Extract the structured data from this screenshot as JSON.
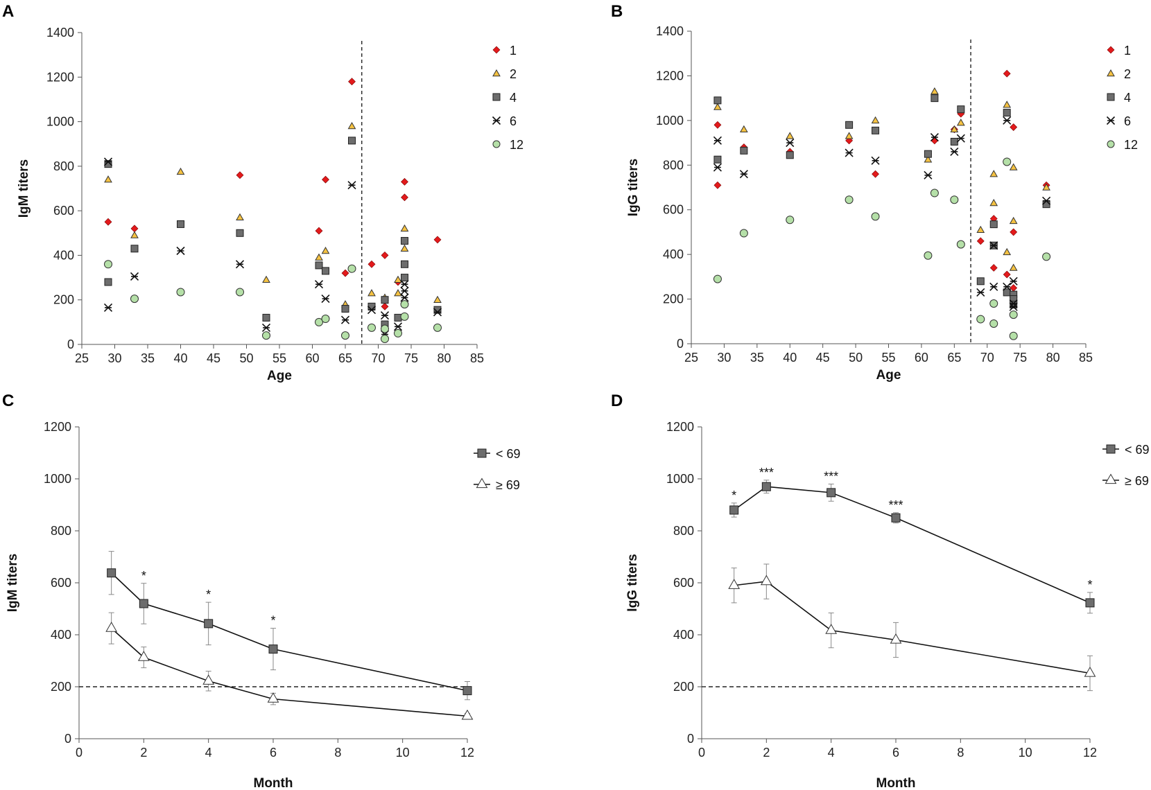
{
  "chart_data": [
    {
      "panel": "A",
      "type": "scatter",
      "xlabel": "Age",
      "ylabel": "IgM titers",
      "xlim": [
        25,
        85
      ],
      "ylim": [
        0,
        1400
      ],
      "xticks": [
        "25",
        "30",
        "35",
        "40",
        "45",
        "50",
        "55",
        "60",
        "65",
        "70",
        "75",
        "80",
        "85"
      ],
      "yticks": [
        "0",
        "200",
        "400",
        "600",
        "800",
        "1000",
        "1200",
        "1400"
      ],
      "vline": 67.5,
      "series": [
        {
          "name": "1",
          "marker": "diamond",
          "color": "#e31a1c",
          "points": [
            [
              29,
              550
            ],
            [
              33,
              520
            ],
            [
              49,
              760
            ],
            [
              61,
              510
            ],
            [
              62,
              740
            ],
            [
              65,
              320
            ],
            [
              66,
              1180
            ],
            [
              69,
              360
            ],
            [
              71,
              400
            ],
            [
              71,
              170
            ],
            [
              73,
              280
            ],
            [
              74,
              730
            ],
            [
              74,
              660
            ],
            [
              79,
              470
            ]
          ]
        },
        {
          "name": "2",
          "marker": "triangle",
          "color": "#f5c242",
          "points": [
            [
              29,
              740
            ],
            [
              33,
              490
            ],
            [
              40,
              775
            ],
            [
              49,
              570
            ],
            [
              53,
              290
            ],
            [
              61,
              390
            ],
            [
              62,
              420
            ],
            [
              65,
              180
            ],
            [
              66,
              980
            ],
            [
              69,
              230
            ],
            [
              71,
              210
            ],
            [
              73,
              290
            ],
            [
              73,
              230
            ],
            [
              74,
              520
            ],
            [
              74,
              430
            ],
            [
              79,
              200
            ]
          ]
        },
        {
          "name": "4",
          "marker": "square",
          "color": "#6d6d6d",
          "points": [
            [
              29,
              810
            ],
            [
              29,
              280
            ],
            [
              33,
              430
            ],
            [
              40,
              540
            ],
            [
              49,
              500
            ],
            [
              53,
              120
            ],
            [
              61,
              355
            ],
            [
              62,
              330
            ],
            [
              65,
              160
            ],
            [
              66,
              915
            ],
            [
              69,
              170
            ],
            [
              71,
              200
            ],
            [
              71,
              90
            ],
            [
              73,
              120
            ],
            [
              74,
              465
            ],
            [
              74,
              360
            ],
            [
              74,
              300
            ],
            [
              79,
              155
            ]
          ]
        },
        {
          "name": "6",
          "marker": "asterisk",
          "color": "#111111",
          "points": [
            [
              29,
              820
            ],
            [
              29,
              165
            ],
            [
              33,
              305
            ],
            [
              40,
              420
            ],
            [
              49,
              360
            ],
            [
              53,
              75
            ],
            [
              61,
              270
            ],
            [
              62,
              205
            ],
            [
              65,
              110
            ],
            [
              66,
              715
            ],
            [
              69,
              155
            ],
            [
              71,
              130
            ],
            [
              71,
              45
            ],
            [
              73,
              80
            ],
            [
              74,
              270
            ],
            [
              74,
              240
            ],
            [
              74,
              210
            ],
            [
              79,
              145
            ]
          ]
        },
        {
          "name": "12",
          "marker": "circle",
          "color": "#b5e0a8",
          "points": [
            [
              29,
              360
            ],
            [
              33,
              205
            ],
            [
              40,
              235
            ],
            [
              49,
              235
            ],
            [
              53,
              40
            ],
            [
              61,
              100
            ],
            [
              62,
              115
            ],
            [
              65,
              40
            ],
            [
              66,
              340
            ],
            [
              69,
              75
            ],
            [
              71,
              70
            ],
            [
              71,
              25
            ],
            [
              73,
              50
            ],
            [
              74,
              180
            ],
            [
              74,
              125
            ],
            [
              79,
              75
            ]
          ]
        }
      ]
    },
    {
      "panel": "B",
      "type": "scatter",
      "xlabel": "Age",
      "ylabel": "IgG titers",
      "xlim": [
        25,
        85
      ],
      "ylim": [
        0,
        1400
      ],
      "xticks": [
        "25",
        "30",
        "35",
        "40",
        "45",
        "50",
        "55",
        "60",
        "65",
        "70",
        "75",
        "80",
        "85"
      ],
      "yticks": [
        "0",
        "200",
        "400",
        "600",
        "800",
        "1000",
        "1200",
        "1400"
      ],
      "vline": 67.5,
      "series": [
        {
          "name": "1",
          "marker": "diamond",
          "color": "#e31a1c",
          "points": [
            [
              29,
              980
            ],
            [
              29,
              710
            ],
            [
              33,
              880
            ],
            [
              40,
              860
            ],
            [
              49,
              910
            ],
            [
              53,
              760
            ],
            [
              61,
              850
            ],
            [
              62,
              910
            ],
            [
              65,
              960
            ],
            [
              66,
              1030
            ],
            [
              69,
              460
            ],
            [
              71,
              560
            ],
            [
              71,
              340
            ],
            [
              73,
              1210
            ],
            [
              73,
              310
            ],
            [
              74,
              970
            ],
            [
              74,
              500
            ],
            [
              74,
              250
            ],
            [
              79,
              710
            ]
          ]
        },
        {
          "name": "2",
          "marker": "triangle",
          "color": "#f5c242",
          "points": [
            [
              29,
              1060
            ],
            [
              33,
              960
            ],
            [
              40,
              930
            ],
            [
              49,
              930
            ],
            [
              53,
              1000
            ],
            [
              61,
              825
            ],
            [
              62,
              1130
            ],
            [
              65,
              960
            ],
            [
              66,
              990
            ],
            [
              69,
              510
            ],
            [
              71,
              760
            ],
            [
              71,
              630
            ],
            [
              73,
              1070
            ],
            [
              73,
              410
            ],
            [
              74,
              790
            ],
            [
              74,
              550
            ],
            [
              74,
              340
            ],
            [
              79,
              700
            ]
          ]
        },
        {
          "name": "4",
          "marker": "square",
          "color": "#6d6d6d",
          "points": [
            [
              29,
              1090
            ],
            [
              29,
              825
            ],
            [
              33,
              865
            ],
            [
              40,
              845
            ],
            [
              49,
              980
            ],
            [
              53,
              955
            ],
            [
              61,
              850
            ],
            [
              62,
              1100
            ],
            [
              65,
              905
            ],
            [
              66,
              1050
            ],
            [
              69,
              280
            ],
            [
              71,
              535
            ],
            [
              71,
              440
            ],
            [
              73,
              1035
            ],
            [
              73,
              230
            ],
            [
              74,
              220
            ],
            [
              74,
              200
            ],
            [
              74,
              175
            ],
            [
              79,
              625
            ]
          ]
        },
        {
          "name": "6",
          "marker": "asterisk",
          "color": "#111111",
          "points": [
            [
              29,
              910
            ],
            [
              29,
              790
            ],
            [
              33,
              760
            ],
            [
              40,
              900
            ],
            [
              49,
              855
            ],
            [
              53,
              820
            ],
            [
              61,
              755
            ],
            [
              62,
              925
            ],
            [
              65,
              860
            ],
            [
              66,
              920
            ],
            [
              69,
              230
            ],
            [
              71,
              440
            ],
            [
              71,
              255
            ],
            [
              73,
              1000
            ],
            [
              73,
              255
            ],
            [
              74,
              280
            ],
            [
              74,
              180
            ],
            [
              74,
              165
            ],
            [
              79,
              640
            ]
          ]
        },
        {
          "name": "12",
          "marker": "circle",
          "color": "#b5e0a8",
          "points": [
            [
              29,
              290
            ],
            [
              33,
              495
            ],
            [
              40,
              555
            ],
            [
              49,
              645
            ],
            [
              53,
              570
            ],
            [
              61,
              395
            ],
            [
              62,
              675
            ],
            [
              65,
              645
            ],
            [
              66,
              445
            ],
            [
              69,
              110
            ],
            [
              71,
              180
            ],
            [
              71,
              90
            ],
            [
              73,
              815
            ],
            [
              74,
              130
            ],
            [
              74,
              35
            ],
            [
              79,
              390
            ]
          ]
        }
      ]
    },
    {
      "panel": "C",
      "type": "line",
      "xlabel": "Month",
      "ylabel": "IgM titers",
      "xlim": [
        0,
        12
      ],
      "ylim": [
        0,
        1200
      ],
      "xticks": [
        "0",
        "2",
        "4",
        "6",
        "8",
        "10",
        "12"
      ],
      "yticks": [
        "0",
        "200",
        "400",
        "600",
        "800",
        "1000",
        "1200"
      ],
      "hline": 200,
      "x": [
        1,
        2,
        4,
        6,
        12
      ],
      "series": [
        {
          "name": "< 69",
          "marker": "square",
          "color": "#6d6d6d",
          "values": [
            638,
            520,
            443,
            345,
            185
          ],
          "errors": [
            83,
            78,
            82,
            80,
            35
          ]
        },
        {
          "name": "≥ 69",
          "marker": "triangle",
          "color": "#ffffff",
          "values": [
            425,
            313,
            222,
            153,
            87
          ],
          "errors": [
            60,
            40,
            38,
            22,
            10
          ]
        }
      ],
      "annotations": [
        {
          "x": 2,
          "y": 520,
          "err": 78,
          "text": "*"
        },
        {
          "x": 4,
          "y": 443,
          "err": 82,
          "text": "*"
        },
        {
          "x": 6,
          "y": 345,
          "err": 80,
          "text": "*"
        }
      ]
    },
    {
      "panel": "D",
      "type": "line",
      "xlabel": "Month",
      "ylabel": "IgG titers",
      "xlim": [
        0,
        12
      ],
      "ylim": [
        0,
        1200
      ],
      "xticks": [
        "0",
        "2",
        "4",
        "6",
        "8",
        "10",
        "12"
      ],
      "yticks": [
        "0",
        "200",
        "400",
        "600",
        "800",
        "1000",
        "1200"
      ],
      "hline": 200,
      "x": [
        1,
        2,
        4,
        6,
        12
      ],
      "series": [
        {
          "name": "< 69",
          "marker": "square",
          "color": "#6d6d6d",
          "values": [
            880,
            970,
            947,
            850,
            523
          ],
          "errors": [
            27,
            25,
            33,
            20,
            40
          ]
        },
        {
          "name": "≥ 69",
          "marker": "triangle",
          "color": "#ffffff",
          "values": [
            590,
            605,
            417,
            380,
            252
          ],
          "errors": [
            67,
            67,
            67,
            67,
            67
          ]
        }
      ],
      "annotations": [
        {
          "x": 1,
          "y": 880,
          "err": 27,
          "text": "*"
        },
        {
          "x": 2,
          "y": 970,
          "err": 25,
          "text": "***"
        },
        {
          "x": 4,
          "y": 947,
          "err": 33,
          "text": "***"
        },
        {
          "x": 6,
          "y": 850,
          "err": 20,
          "text": "***"
        },
        {
          "x": 12,
          "y": 523,
          "err": 40,
          "text": "*"
        }
      ]
    }
  ]
}
